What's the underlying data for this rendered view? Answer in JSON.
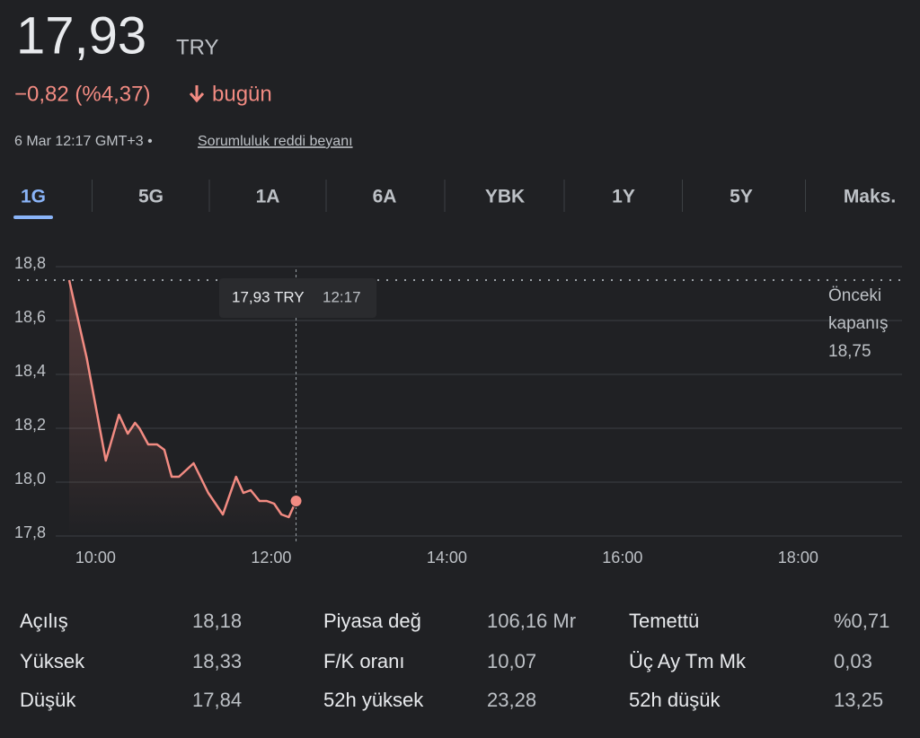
{
  "header": {
    "price": "17,93",
    "currency": "TRY",
    "change": "−0,82 (%4,37)",
    "change_period": "bugün",
    "timestamp": "6 Mar 12:17 GMT+3 •",
    "disclaimer": "Sorumluluk reddi beyanı"
  },
  "tabs": {
    "items": [
      "1G",
      "5G",
      "1A",
      "6A",
      "YBK",
      "1Y",
      "5Y",
      "Maks."
    ],
    "selected": 0
  },
  "chart_data": {
    "type": "line",
    "color": "#f28b82",
    "x": [
      582,
      594,
      607,
      616,
      622,
      627,
      630,
      636,
      642,
      647,
      652,
      657,
      667,
      677,
      687,
      696,
      701,
      706,
      712,
      717,
      722,
      727,
      732,
      737
    ],
    "values": [
      18.75,
      18.46,
      18.08,
      18.25,
      18.18,
      18.22,
      18.2,
      18.14,
      18.14,
      18.12,
      18.02,
      18.02,
      18.07,
      17.96,
      17.88,
      18.02,
      17.96,
      17.97,
      17.93,
      17.93,
      17.92,
      17.88,
      17.87,
      17.93
    ],
    "xlim": [
      547,
      1151
    ],
    "xticks": [
      {
        "value": 600,
        "label": "10:00"
      },
      {
        "value": 720,
        "label": "12:00"
      },
      {
        "value": 840,
        "label": "14:00"
      },
      {
        "value": 960,
        "label": "16:00"
      },
      {
        "value": 1080,
        "label": "18:00"
      }
    ],
    "ylim": [
      17.8,
      18.8
    ],
    "yticks": [
      {
        "value": 17.8,
        "label": "17,8"
      },
      {
        "value": 18,
        "label": "18,0"
      },
      {
        "value": 18.2,
        "label": "18,2"
      },
      {
        "value": 18.4,
        "label": "18,4"
      },
      {
        "value": 18.6,
        "label": "18,6"
      },
      {
        "value": 18.8,
        "label": "18,8"
      }
    ],
    "grid": true,
    "previous_close": {
      "value": 18.75,
      "label": "18,75",
      "title": "Önceki kapanış"
    },
    "tooltip": {
      "price": "17,93 TRY",
      "time": "12:17"
    }
  },
  "stats": {
    "rows": [
      [
        {
          "label": "Açılış",
          "value": "18,18"
        },
        {
          "label": "Piyasa değ",
          "value": "106,16 Mr"
        },
        {
          "label": "Temettü",
          "value": "%0,71"
        }
      ],
      [
        {
          "label": "Yüksek",
          "value": "18,33"
        },
        {
          "label": "F/K oranı",
          "value": "10,07"
        },
        {
          "label": "Üç Ay Tm Mk",
          "value": "0,03"
        }
      ],
      [
        {
          "label": "Düşük",
          "value": "17,84"
        },
        {
          "label": "52h yüksek",
          "value": "23,28"
        },
        {
          "label": "52h düşük",
          "value": "13,25"
        }
      ]
    ]
  }
}
